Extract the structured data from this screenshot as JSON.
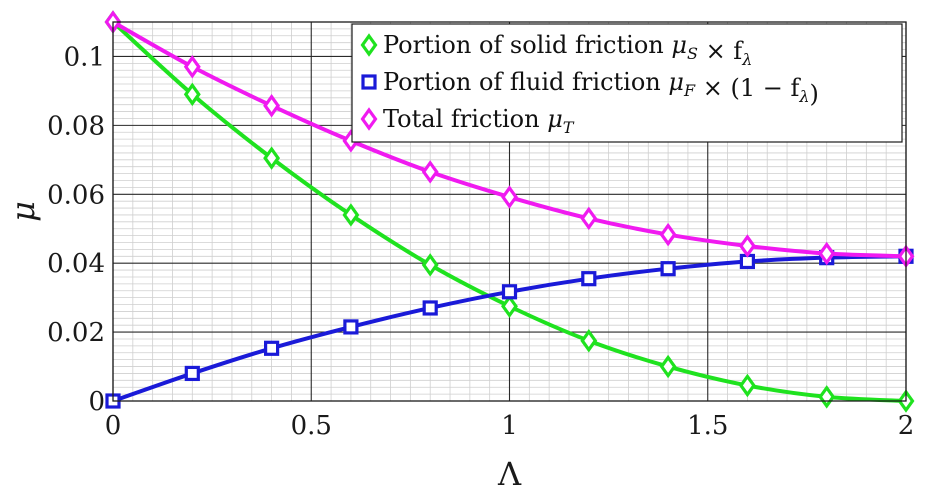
{
  "chart_data": {
    "type": "line",
    "title": "",
    "xlabel": "Λ",
    "ylabel": "μ",
    "xlim": [
      0,
      2
    ],
    "ylim": [
      0,
      0.11
    ],
    "x_ticks": [
      "0",
      "0.5",
      "1",
      "1.5",
      "2"
    ],
    "y_ticks": [
      "0",
      "0.02",
      "0.04",
      "0.06",
      "0.08",
      "0.1"
    ],
    "grid": true,
    "minor_grid": true,
    "legend_position": "top-right",
    "x": [
      0,
      0.2,
      0.4,
      0.6,
      0.8,
      1.0,
      1.2,
      1.4,
      1.6,
      1.8,
      2.0
    ],
    "series": [
      {
        "name": "Portion of solid friction μS × fλ",
        "label_prefix": "Portion of solid friction ",
        "label_math": "μ",
        "label_sub": "S",
        "label_suffix": " × f",
        "label_sub2": "λ",
        "label_tail": "",
        "color": "#1fe21f",
        "marker": "diamond",
        "values": [
          0.11,
          0.089,
          0.0705,
          0.054,
          0.0395,
          0.0275,
          0.0175,
          0.01,
          0.0045,
          0.0012,
          0.0
        ]
      },
      {
        "name": "Portion of fluid friction μF × (1 − fλ)",
        "label_prefix": "Portion of fluid friction ",
        "label_math": "μ",
        "label_sub": "F",
        "label_suffix": " × (1 − f",
        "label_sub2": "λ",
        "label_tail": ")",
        "color": "#1a1ad8",
        "marker": "square",
        "values": [
          0.0,
          0.008,
          0.0153,
          0.0215,
          0.027,
          0.0317,
          0.0355,
          0.0384,
          0.0405,
          0.0416,
          0.042
        ]
      },
      {
        "name": "Total friction μT",
        "label_prefix": "Total friction ",
        "label_math": "μ",
        "label_sub": "T",
        "label_suffix": "",
        "label_sub2": "",
        "label_tail": "",
        "color": "#f01af0",
        "marker": "diamond",
        "values": [
          0.11,
          0.097,
          0.0857,
          0.0755,
          0.0665,
          0.0592,
          0.053,
          0.0483,
          0.045,
          0.0428,
          0.042
        ]
      }
    ]
  }
}
